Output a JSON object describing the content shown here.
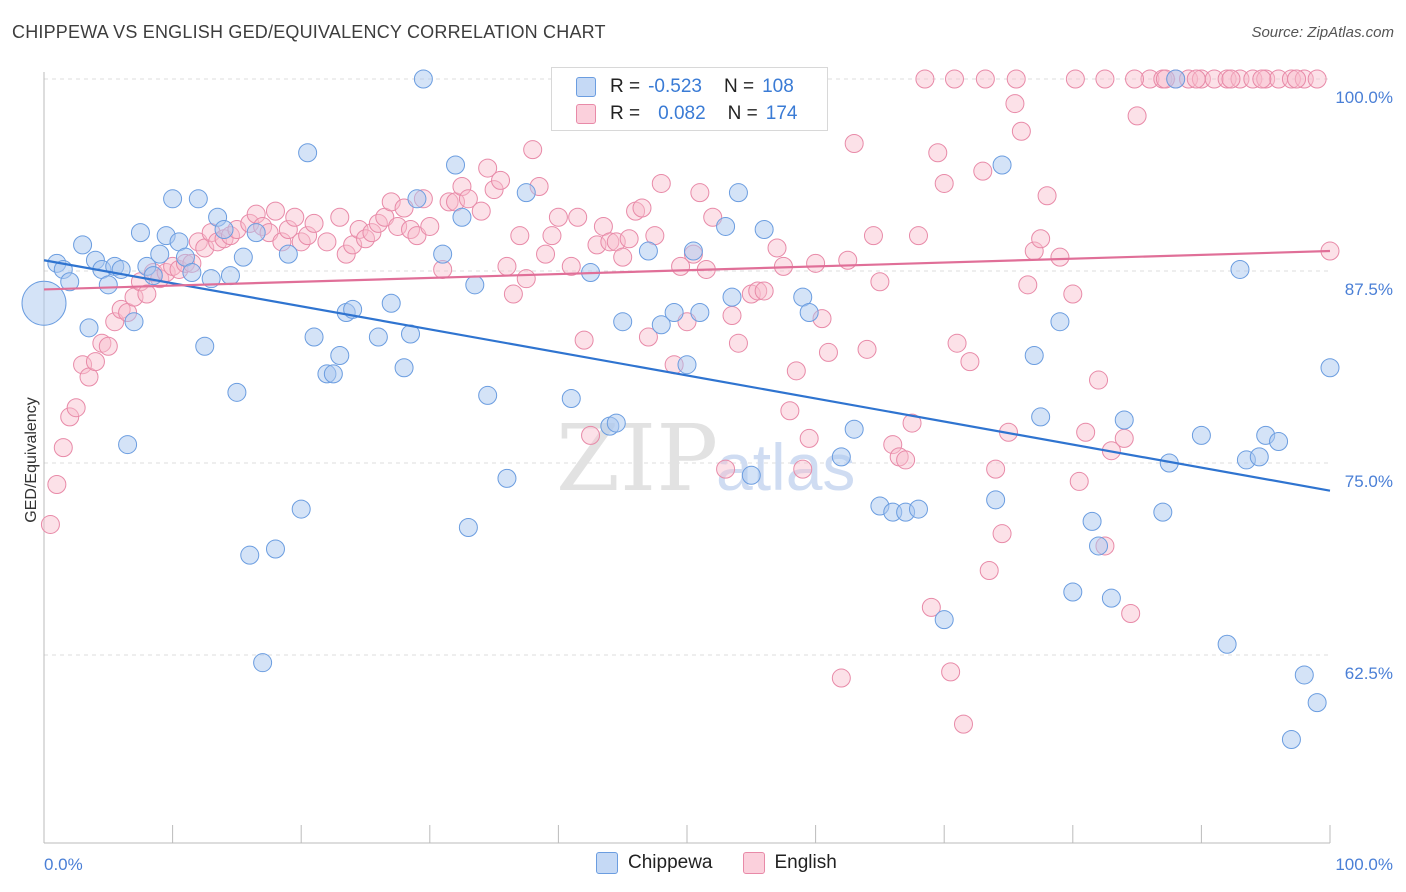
{
  "title": "CHIPPEWA VS ENGLISH GED/EQUIVALENCY CORRELATION CHART",
  "source": "Source: ZipAtlas.com",
  "watermark": {
    "zip": "ZIP",
    "atlas": "atlas"
  },
  "legend": {
    "series": [
      {
        "name": "Chippewa",
        "r_label": "R =",
        "r_value": "-0.523",
        "n_label": "N =",
        "n_value": "108",
        "fill": "#aac8f0",
        "stroke": "#6b9de0"
      },
      {
        "name": "English",
        "r_label": "R =",
        "r_value": "0.082",
        "n_label": "N =",
        "n_value": "174",
        "fill": "#f8bccd",
        "stroke": "#e88aa8"
      }
    ]
  },
  "chart_data": {
    "type": "scatter",
    "title": "CHIPPEWA VS ENGLISH GED/EQUIVALENCY CORRELATION CHART",
    "xlabel": "",
    "ylabel": "GED/Equivalency",
    "xlim": [
      0,
      100
    ],
    "ylim": [
      52.8,
      101.8
    ],
    "x_tick_labels": [
      {
        "value": 0,
        "label": "0.0%"
      },
      {
        "value": 100,
        "label": "100.0%"
      }
    ],
    "y_tick_labels": [
      {
        "value": 100,
        "label": "100.0%"
      },
      {
        "value": 87.5,
        "label": "87.5%"
      },
      {
        "value": 75,
        "label": "75.0%"
      },
      {
        "value": 62.5,
        "label": "62.5%"
      }
    ],
    "grid": "horizontal dashed",
    "legend_position": "top-center",
    "series": [
      {
        "name": "Chippewa",
        "color": "#6b9de0",
        "trend": {
          "x": [
            0,
            100
          ],
          "y": [
            88.2,
            73.2
          ]
        },
        "points": [
          [
            1,
            88
          ],
          [
            1.5,
            87.6
          ],
          [
            2,
            86.8
          ],
          [
            3,
            89.2
          ],
          [
            3.5,
            83.8
          ],
          [
            4,
            88.2
          ],
          [
            4.5,
            87.6
          ],
          [
            5,
            86.6
          ],
          [
            5.5,
            87.8
          ],
          [
            6,
            87.6
          ],
          [
            6.5,
            76.2
          ],
          [
            7,
            84.2
          ],
          [
            7.5,
            90
          ],
          [
            8,
            87.8
          ],
          [
            8.5,
            87.2
          ],
          [
            9,
            88.6
          ],
          [
            9.5,
            89.8
          ],
          [
            10,
            92.2
          ],
          [
            10.5,
            89.4
          ],
          [
            11,
            88.4
          ],
          [
            11.5,
            87.4
          ],
          [
            12,
            92.2
          ],
          [
            12.5,
            82.6
          ],
          [
            13,
            87
          ],
          [
            13.5,
            91
          ],
          [
            14,
            90.2
          ],
          [
            14.5,
            87.2
          ],
          [
            15,
            79.6
          ],
          [
            15.5,
            88.4
          ],
          [
            16,
            69
          ],
          [
            16.5,
            90
          ],
          [
            17,
            62
          ],
          [
            18,
            69.4
          ],
          [
            19,
            88.6
          ],
          [
            20,
            72
          ],
          [
            20.5,
            95.2
          ],
          [
            21,
            83.2
          ],
          [
            22,
            80.8
          ],
          [
            22.5,
            80.8
          ],
          [
            23,
            82
          ],
          [
            23.5,
            84.8
          ],
          [
            24,
            85
          ],
          [
            26,
            83.2
          ],
          [
            27,
            85.4
          ],
          [
            28,
            81.2
          ],
          [
            28.5,
            83.4
          ],
          [
            29,
            92.2
          ],
          [
            29.5,
            100
          ],
          [
            31,
            88.6
          ],
          [
            32,
            94.4
          ],
          [
            32.5,
            91
          ],
          [
            33,
            70.8
          ],
          [
            33.5,
            86.6
          ],
          [
            34.5,
            79.4
          ],
          [
            36,
            74
          ],
          [
            37.5,
            92.6
          ],
          [
            41,
            79.2
          ],
          [
            42.5,
            87.4
          ],
          [
            44,
            77.4
          ],
          [
            44.5,
            77.6
          ],
          [
            45,
            84.2
          ],
          [
            47,
            88.8
          ],
          [
            48,
            84
          ],
          [
            49,
            84.8
          ],
          [
            50,
            81.4
          ],
          [
            50.5,
            88.8
          ],
          [
            51,
            84.8
          ],
          [
            53,
            90.4
          ],
          [
            53.5,
            85.8
          ],
          [
            54,
            92.6
          ],
          [
            55,
            74.2
          ],
          [
            56,
            90.2
          ],
          [
            59,
            85.8
          ],
          [
            59.5,
            84.8
          ],
          [
            62,
            75.4
          ],
          [
            63,
            77.2
          ],
          [
            65,
            72.2
          ],
          [
            66,
            71.8
          ],
          [
            67,
            71.8
          ],
          [
            68,
            72
          ],
          [
            70,
            64.8
          ],
          [
            74,
            72.6
          ],
          [
            74.5,
            94.4
          ],
          [
            77,
            82
          ],
          [
            77.5,
            78
          ],
          [
            79,
            84.2
          ],
          [
            80,
            66.6
          ],
          [
            81.5,
            71.2
          ],
          [
            82,
            69.6
          ],
          [
            83,
            66.2
          ],
          [
            84,
            77.8
          ],
          [
            87,
            71.8
          ],
          [
            87.5,
            75
          ],
          [
            88,
            100
          ],
          [
            90,
            76.8
          ],
          [
            92,
            63.2
          ],
          [
            93,
            87.6
          ],
          [
            93.5,
            75.2
          ],
          [
            94.5,
            75.4
          ],
          [
            95,
            76.8
          ],
          [
            96,
            76.4
          ],
          [
            97,
            57
          ],
          [
            98,
            61.2
          ],
          [
            99,
            59.4
          ],
          [
            100,
            81.2
          ],
          [
            0,
            85.4
          ]
        ]
      },
      {
        "name": "English",
        "color": "#e88aa8",
        "trend": {
          "x": [
            0,
            100
          ],
          "y": [
            86.3,
            88.8
          ]
        },
        "points": [
          [
            0.5,
            71
          ],
          [
            1,
            73.6
          ],
          [
            1.5,
            76
          ],
          [
            2,
            78
          ],
          [
            2.5,
            78.6
          ],
          [
            3,
            81.4
          ],
          [
            3.5,
            80.6
          ],
          [
            4,
            81.6
          ],
          [
            4.5,
            82.8
          ],
          [
            5,
            82.6
          ],
          [
            5.5,
            84.2
          ],
          [
            6,
            85
          ],
          [
            6.5,
            84.8
          ],
          [
            7,
            85.8
          ],
          [
            7.5,
            86.8
          ],
          [
            8,
            86
          ],
          [
            8.5,
            87.4
          ],
          [
            9,
            87
          ],
          [
            9.5,
            87.4
          ],
          [
            10,
            87.8
          ],
          [
            10.5,
            87.6
          ],
          [
            11,
            88
          ],
          [
            11.5,
            88
          ],
          [
            12,
            89.4
          ],
          [
            12.5,
            89
          ],
          [
            13,
            90
          ],
          [
            13.5,
            89.4
          ],
          [
            14,
            89.6
          ],
          [
            14.5,
            89.8
          ],
          [
            15,
            90.2
          ],
          [
            16,
            90.6
          ],
          [
            16.5,
            91.2
          ],
          [
            17,
            90.4
          ],
          [
            17.5,
            90
          ],
          [
            18,
            91.4
          ],
          [
            18.5,
            89.4
          ],
          [
            19,
            90.2
          ],
          [
            19.5,
            91
          ],
          [
            20,
            89.4
          ],
          [
            20.5,
            89.8
          ],
          [
            21,
            90.6
          ],
          [
            22,
            89.4
          ],
          [
            23,
            91
          ],
          [
            23.5,
            88.6
          ],
          [
            24,
            89.2
          ],
          [
            24.5,
            90.2
          ],
          [
            25,
            89.6
          ],
          [
            25.5,
            90
          ],
          [
            26,
            90.6
          ],
          [
            26.5,
            91
          ],
          [
            27,
            92
          ],
          [
            27.5,
            90.4
          ],
          [
            28,
            91.6
          ],
          [
            28.5,
            90.2
          ],
          [
            29,
            89.8
          ],
          [
            29.5,
            92.2
          ],
          [
            30,
            90.4
          ],
          [
            31,
            87.6
          ],
          [
            31.5,
            92
          ],
          [
            32,
            92
          ],
          [
            32.5,
            93
          ],
          [
            33,
            92.2
          ],
          [
            34,
            91.4
          ],
          [
            34.5,
            94.2
          ],
          [
            35,
            92.8
          ],
          [
            35.5,
            93.4
          ],
          [
            36,
            87.8
          ],
          [
            36.5,
            86
          ],
          [
            37,
            89.8
          ],
          [
            37.5,
            87
          ],
          [
            38,
            95.4
          ],
          [
            38.5,
            93
          ],
          [
            39,
            88.6
          ],
          [
            39.5,
            89.8
          ],
          [
            40,
            91
          ],
          [
            41,
            87.8
          ],
          [
            41.5,
            91
          ],
          [
            42,
            83
          ],
          [
            42.5,
            76.8
          ],
          [
            43,
            89.2
          ],
          [
            43.5,
            90.4
          ],
          [
            44,
            89.4
          ],
          [
            44.5,
            89.4
          ],
          [
            45,
            88.4
          ],
          [
            45.5,
            89.6
          ],
          [
            46,
            91.4
          ],
          [
            46.5,
            91.6
          ],
          [
            47,
            83.2
          ],
          [
            47.5,
            89.8
          ],
          [
            48,
            93.2
          ],
          [
            49,
            81.4
          ],
          [
            49.5,
            87.8
          ],
          [
            50,
            84.2
          ],
          [
            50.5,
            88.6
          ],
          [
            51,
            92.6
          ],
          [
            51.5,
            87.6
          ],
          [
            52,
            91
          ],
          [
            53,
            74.6
          ],
          [
            53.5,
            84.6
          ],
          [
            54,
            82.8
          ],
          [
            55,
            86
          ],
          [
            55.5,
            86.2
          ],
          [
            56,
            86.2
          ],
          [
            57,
            89
          ],
          [
            57.5,
            87.8
          ],
          [
            58,
            78.4
          ],
          [
            58.5,
            81
          ],
          [
            59,
            74.6
          ],
          [
            59.5,
            76.6
          ],
          [
            60,
            88
          ],
          [
            60.5,
            84.4
          ],
          [
            61,
            82.2
          ],
          [
            62,
            61
          ],
          [
            62.5,
            88.2
          ],
          [
            63,
            95.8
          ],
          [
            64,
            82.4
          ],
          [
            64.5,
            89.8
          ],
          [
            65,
            86.8
          ],
          [
            66,
            76.2
          ],
          [
            66.5,
            75.4
          ],
          [
            67,
            75.2
          ],
          [
            67.5,
            77.6
          ],
          [
            68,
            89.8
          ],
          [
            69,
            65.6
          ],
          [
            69.5,
            95.2
          ],
          [
            70,
            93.2
          ],
          [
            70.5,
            61.4
          ],
          [
            71,
            82.8
          ],
          [
            71.5,
            58
          ],
          [
            72,
            81.6
          ],
          [
            73,
            94
          ],
          [
            73.5,
            68
          ],
          [
            74,
            74.6
          ],
          [
            74.5,
            70.4
          ],
          [
            75,
            77
          ],
          [
            75.5,
            98.4
          ],
          [
            76,
            96.6
          ],
          [
            76.5,
            86.6
          ],
          [
            77,
            88.8
          ],
          [
            77.5,
            89.6
          ],
          [
            78,
            92.4
          ],
          [
            79,
            88.4
          ],
          [
            80,
            86
          ],
          [
            80.5,
            73.8
          ],
          [
            81,
            77
          ],
          [
            82,
            80.4
          ],
          [
            82.5,
            69.6
          ],
          [
            83,
            75.8
          ],
          [
            84,
            76.6
          ],
          [
            84.5,
            65.2
          ],
          [
            85,
            97.6
          ],
          [
            86,
            100
          ],
          [
            87,
            100
          ],
          [
            88,
            100
          ],
          [
            89,
            100
          ],
          [
            90,
            100
          ],
          [
            91,
            100
          ],
          [
            92,
            100
          ],
          [
            93,
            100
          ],
          [
            94,
            100
          ],
          [
            95,
            100
          ],
          [
            96,
            100
          ],
          [
            97,
            100
          ],
          [
            98,
            100
          ],
          [
            99,
            100
          ],
          [
            100,
            88.8
          ],
          [
            68.5,
            100
          ],
          [
            70.8,
            100
          ],
          [
            73.2,
            100
          ],
          [
            75.6,
            100
          ],
          [
            80.2,
            100
          ],
          [
            82.5,
            100
          ],
          [
            84.8,
            100
          ],
          [
            87.2,
            100
          ],
          [
            89.6,
            100
          ],
          [
            92.3,
            100
          ],
          [
            94.7,
            100
          ],
          [
            97.4,
            100
          ]
        ]
      }
    ]
  }
}
